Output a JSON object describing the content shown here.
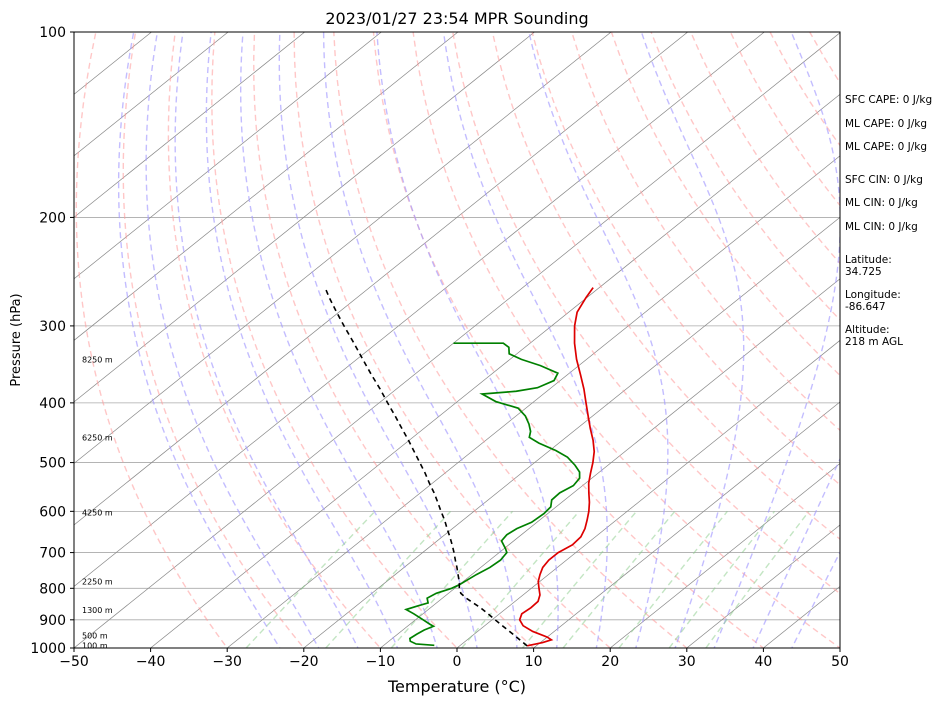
{
  "chart_data": {
    "type": "line",
    "title": "2023/01/27 23:54 MPR Sounding",
    "xlabel": "Temperature (°C)",
    "ylabel": "Pressure (hPa)",
    "xlim": [
      -50,
      50
    ],
    "ylim": [
      1000,
      100
    ],
    "y_scale": "log",
    "skew": true,
    "grid": true,
    "x_ticks": [
      "−50",
      "−40",
      "−30",
      "−20",
      "−10",
      "0",
      "10",
      "20",
      "30",
      "40",
      "50"
    ],
    "y_ticks": [
      "100",
      "200",
      "300",
      "400",
      "500",
      "600",
      "700",
      "800",
      "900",
      "1000"
    ],
    "height_labels": [
      {
        "label": "100 m",
        "p": 990
      },
      {
        "label": "500 m",
        "p": 955
      },
      {
        "label": "1300 m",
        "p": 868
      },
      {
        "label": "2250 m",
        "p": 780
      },
      {
        "label": "4250 m",
        "p": 603
      },
      {
        "label": "6250 m",
        "p": 455
      },
      {
        "label": "8250 m",
        "p": 340
      }
    ],
    "series": [
      {
        "name": "",
        "kind": "temperature",
        "color": "#dd0000",
        "points": [
          [
            992,
            8.8
          ],
          [
            980,
            10.3
          ],
          [
            970,
            11.0
          ],
          [
            960,
            10.0
          ],
          [
            940,
            7.2
          ],
          [
            920,
            5.0
          ],
          [
            900,
            3.6
          ],
          [
            880,
            2.9
          ],
          [
            860,
            3.1
          ],
          [
            840,
            3.0
          ],
          [
            820,
            2.2
          ],
          [
            800,
            1.0
          ],
          [
            780,
            -0.2
          ],
          [
            760,
            -1.1
          ],
          [
            740,
            -1.9
          ],
          [
            720,
            -2.3
          ],
          [
            700,
            -2.3
          ],
          [
            680,
            -1.7
          ],
          [
            660,
            -1.9
          ],
          [
            640,
            -2.7
          ],
          [
            620,
            -3.8
          ],
          [
            600,
            -5.0
          ],
          [
            580,
            -6.4
          ],
          [
            560,
            -8.0
          ],
          [
            540,
            -9.6
          ],
          [
            520,
            -11.0
          ],
          [
            500,
            -12.4
          ],
          [
            480,
            -14.0
          ],
          [
            460,
            -16.0
          ],
          [
            440,
            -18.3
          ],
          [
            420,
            -20.6
          ],
          [
            400,
            -23.0
          ],
          [
            380,
            -25.5
          ],
          [
            360,
            -28.3
          ],
          [
            340,
            -31.3
          ],
          [
            320,
            -34.2
          ],
          [
            300,
            -37.0
          ],
          [
            285,
            -38.9
          ],
          [
            270,
            -40.1
          ],
          [
            260,
            -40.8
          ]
        ]
      },
      {
        "name": "",
        "kind": "dewpoint",
        "color": "#008000",
        "points": [
          [
            990,
            -3.4
          ],
          [
            985,
            -6.0
          ],
          [
            975,
            -7.2
          ],
          [
            965,
            -7.7
          ],
          [
            950,
            -7.5
          ],
          [
            935,
            -7.2
          ],
          [
            922,
            -6.6
          ],
          [
            915,
            -7.4
          ],
          [
            900,
            -9.0
          ],
          [
            880,
            -11.2
          ],
          [
            866,
            -12.9
          ],
          [
            855,
            -12.0
          ],
          [
            845,
            -11.1
          ],
          [
            830,
            -12.0
          ],
          [
            815,
            -11.6
          ],
          [
            800,
            -10.4
          ],
          [
            790,
            -10.0
          ],
          [
            775,
            -9.7
          ],
          [
            760,
            -9.4
          ],
          [
            740,
            -8.8
          ],
          [
            720,
            -8.6
          ],
          [
            710,
            -8.8
          ],
          [
            700,
            -9.0
          ],
          [
            690,
            -9.8
          ],
          [
            670,
            -11.6
          ],
          [
            655,
            -11.9
          ],
          [
            640,
            -11.6
          ],
          [
            625,
            -10.7
          ],
          [
            605,
            -10.5
          ],
          [
            590,
            -10.7
          ],
          [
            575,
            -11.7
          ],
          [
            560,
            -11.8
          ],
          [
            545,
            -11.2
          ],
          [
            530,
            -11.6
          ],
          [
            518,
            -12.6
          ],
          [
            505,
            -14.3
          ],
          [
            490,
            -16.6
          ],
          [
            478,
            -19.2
          ],
          [
            465,
            -22.6
          ],
          [
            455,
            -24.8
          ],
          [
            445,
            -25.6
          ],
          [
            433,
            -27.0
          ],
          [
            420,
            -28.8
          ],
          [
            408,
            -31.0
          ],
          [
            398,
            -35.0
          ],
          [
            387,
            -38.0
          ],
          [
            383,
            -34.0
          ],
          [
            378,
            -31.8
          ],
          [
            368,
            -30.8
          ],
          [
            358,
            -31.5
          ],
          [
            348,
            -35.0
          ],
          [
            340,
            -38.5
          ],
          [
            333,
            -41.0
          ],
          [
            325,
            -42.1
          ],
          [
            320,
            -43.5
          ],
          [
            320,
            -50.0
          ]
        ]
      },
      {
        "name": "",
        "kind": "parcel",
        "color": "#000000",
        "dashed": true,
        "points": [
          [
            992,
            8.8
          ],
          [
            960,
            6.0
          ],
          [
            920,
            2.3
          ],
          [
            900,
            0.4
          ],
          [
            880,
            -1.5
          ],
          [
            860,
            -3.5
          ],
          [
            845,
            -5.2
          ],
          [
            830,
            -6.9
          ],
          [
            815,
            -8.4
          ],
          [
            800,
            -9.4
          ],
          [
            780,
            -10.5
          ],
          [
            760,
            -11.8
          ],
          [
            740,
            -13.1
          ],
          [
            720,
            -14.5
          ],
          [
            700,
            -15.9
          ],
          [
            680,
            -17.4
          ],
          [
            660,
            -19.0
          ],
          [
            640,
            -20.7
          ],
          [
            620,
            -22.4
          ],
          [
            600,
            -24.3
          ],
          [
            580,
            -26.2
          ],
          [
            560,
            -28.2
          ],
          [
            540,
            -30.4
          ],
          [
            520,
            -32.6
          ],
          [
            500,
            -35.0
          ],
          [
            480,
            -37.5
          ],
          [
            460,
            -40.1
          ],
          [
            440,
            -42.9
          ],
          [
            420,
            -45.8
          ],
          [
            400,
            -48.9
          ],
          [
            380,
            -52.1
          ],
          [
            360,
            -55.6
          ],
          [
            340,
            -59.2
          ],
          [
            320,
            -63.0
          ],
          [
            300,
            -67.1
          ],
          [
            285,
            -70.3
          ],
          [
            270,
            -73.6
          ],
          [
            260,
            -75.8
          ]
        ]
      }
    ]
  },
  "stats": {
    "sfc_cape": "SFC CAPE: 0 J/kg",
    "ml_cape_1": "ML CAPE: 0 J/kg",
    "ml_cape_2": "ML CAPE: 0 J/kg",
    "sfc_cin": "SFC CIN: 0 J/kg",
    "ml_cin_1": "ML CIN: 0 J/kg",
    "ml_cin_2": "ML CIN: 0 J/kg",
    "latitude": "Latitude:\n34.725",
    "longitude": "Longitude:\n-86.647",
    "altitude": "Altitude:\n218 m AGL"
  },
  "colors": {
    "temperature": "#dd0000",
    "dewpoint": "#008000",
    "parcel": "#000000",
    "dry_adiabat": "#ff9999",
    "moist_adiabat": "#a399ff",
    "mixing_ratio": "#88cc88",
    "isotherm": "#888888"
  }
}
